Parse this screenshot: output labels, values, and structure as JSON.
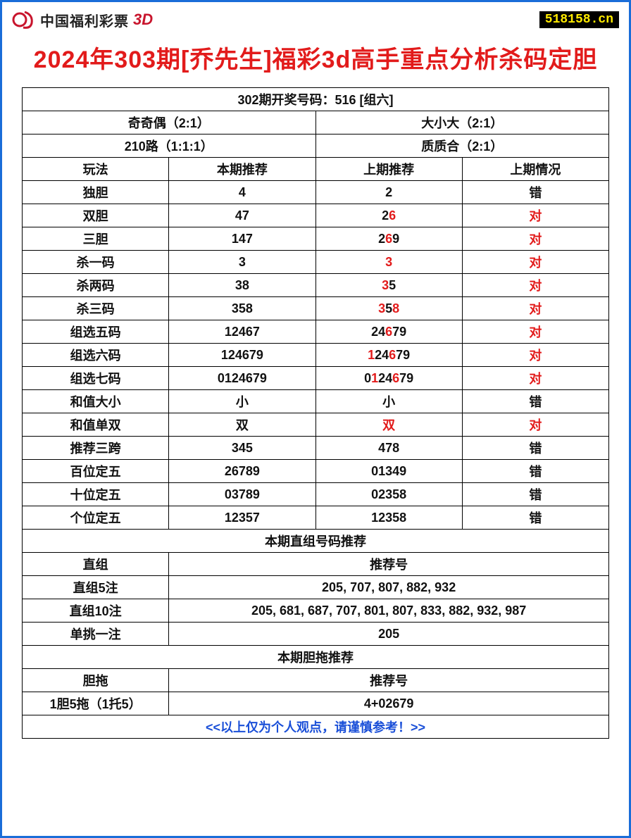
{
  "header": {
    "logo_text": "中国福利彩票",
    "logo_suffix": "3D",
    "site_badge": "518158.cn"
  },
  "title": "2024年303期[乔先生]福彩3d高手重点分析杀码定胆",
  "draw_result": "302期开奖号码：516 [组六]",
  "summary": {
    "top_left": "奇奇偶（2:1）",
    "top_right": "大小大（2:1）",
    "bot_left": "210路（1:1:1）",
    "bot_right": "质质合（2:1）"
  },
  "col_headers": {
    "c1": "玩法",
    "c2": "本期推荐",
    "c3": "上期推荐",
    "c4": "上期情况"
  },
  "rows": [
    {
      "name": "独胆",
      "cur": "4",
      "prev": [
        {
          "t": "2"
        }
      ],
      "res": "错",
      "res_red": false
    },
    {
      "name": "双胆",
      "cur": "47",
      "prev": [
        {
          "t": "2"
        },
        {
          "t": "6",
          "r": true
        }
      ],
      "res": "对",
      "res_red": true
    },
    {
      "name": "三胆",
      "cur": "147",
      "prev": [
        {
          "t": "2"
        },
        {
          "t": "6",
          "r": true
        },
        {
          "t": "9"
        }
      ],
      "res": "对",
      "res_red": true
    },
    {
      "name": "杀一码",
      "cur": "3",
      "prev": [
        {
          "t": "3",
          "r": true
        }
      ],
      "res": "对",
      "res_red": true
    },
    {
      "name": "杀两码",
      "cur": "38",
      "prev": [
        {
          "t": "3",
          "r": true
        },
        {
          "t": "5"
        }
      ],
      "res": "对",
      "res_red": true
    },
    {
      "name": "杀三码",
      "cur": "358",
      "prev": [
        {
          "t": "3",
          "r": true
        },
        {
          "t": "5"
        },
        {
          "t": "8",
          "r": true
        }
      ],
      "res": "对",
      "res_red": true
    },
    {
      "name": "组选五码",
      "cur": "12467",
      "prev": [
        {
          "t": "24"
        },
        {
          "t": "6",
          "r": true
        },
        {
          "t": "79"
        }
      ],
      "res": "对",
      "res_red": true
    },
    {
      "name": "组选六码",
      "cur": "124679",
      "prev": [
        {
          "t": "1",
          "r": true
        },
        {
          "t": "24"
        },
        {
          "t": "6",
          "r": true
        },
        {
          "t": "79"
        }
      ],
      "res": "对",
      "res_red": true
    },
    {
      "name": "组选七码",
      "cur": "0124679",
      "prev": [
        {
          "t": "0"
        },
        {
          "t": "1",
          "r": true
        },
        {
          "t": "24"
        },
        {
          "t": "6",
          "r": true
        },
        {
          "t": "79"
        }
      ],
      "res": "对",
      "res_red": true
    },
    {
      "name": "和值大小",
      "cur": "小",
      "prev": [
        {
          "t": "小"
        }
      ],
      "res": "错",
      "res_red": false
    },
    {
      "name": "和值单双",
      "cur": "双",
      "prev": [
        {
          "t": "双",
          "r": true
        }
      ],
      "res": "对",
      "res_red": true
    },
    {
      "name": "推荐三跨",
      "cur": "345",
      "prev": [
        {
          "t": "478"
        }
      ],
      "res": "错",
      "res_red": false
    },
    {
      "name": "百位定五",
      "cur": "26789",
      "prev": [
        {
          "t": "01349"
        }
      ],
      "res": "错",
      "res_red": false
    },
    {
      "name": "十位定五",
      "cur": "03789",
      "prev": [
        {
          "t": "02358"
        }
      ],
      "res": "错",
      "res_red": false
    },
    {
      "name": "个位定五",
      "cur": "12357",
      "prev": [
        {
          "t": "12358"
        }
      ],
      "res": "错",
      "res_red": false
    }
  ],
  "section2_title": "本期直组号码推荐",
  "section2_header": {
    "left": "直组",
    "right": "推荐号"
  },
  "section2_rows": [
    {
      "name": "直组5注",
      "val": "205, 707, 807, 882, 932"
    },
    {
      "name": "直组10注",
      "val": "205, 681, 687, 707, 801, 807, 833, 882, 932, 987"
    },
    {
      "name": "单挑一注",
      "val": "205"
    }
  ],
  "section3_title": "本期胆拖推荐",
  "section3_header": {
    "left": "胆拖",
    "right": "推荐号"
  },
  "section3_rows": [
    {
      "name": "1胆5拖（1托5）",
      "val": "4+02679"
    }
  ],
  "footer": "<<以上仅为个人观点，请谨慎参考！>>",
  "colors": {
    "border": "#1a6dd8",
    "title_red": "#e21b1b",
    "text_black": "#111111",
    "badge_bg": "#000000",
    "badge_fg": "#ffeb00",
    "footer_blue": "#1a4fd8"
  }
}
